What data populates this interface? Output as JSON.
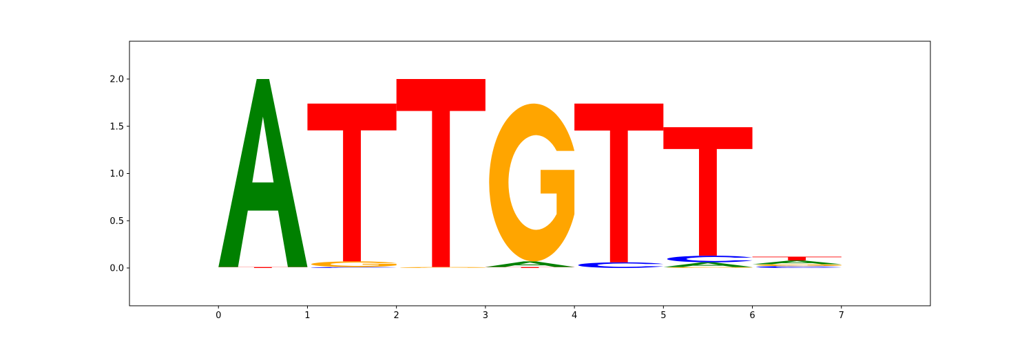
{
  "chart_data": {
    "type": "sequence_logo",
    "title": "",
    "xlabel": "",
    "ylabel": "",
    "xlim": [
      -1,
      8
    ],
    "ylim": [
      -0.4,
      2.4
    ],
    "x_ticks": [
      "0",
      "1",
      "2",
      "3",
      "4",
      "5",
      "6",
      "7"
    ],
    "y_ticks": [
      "0.0",
      "0.5",
      "1.0",
      "1.5",
      "2.0"
    ],
    "grid": false,
    "colors": {
      "A": "#008000",
      "C": "#0000ff",
      "G": "#ffa500",
      "T": "#ff0000"
    },
    "positions": [
      {
        "start": 0,
        "letters": [
          {
            "base": "T",
            "height": 0.01
          },
          {
            "base": "A",
            "height": 1.99
          }
        ]
      },
      {
        "start": 1,
        "letters": [
          {
            "base": "C",
            "height": 0.01
          },
          {
            "base": "G",
            "height": 0.06
          },
          {
            "base": "T",
            "height": 1.67
          }
        ]
      },
      {
        "start": 2,
        "letters": [
          {
            "base": "G",
            "height": 0.01
          },
          {
            "base": "T",
            "height": 1.99
          }
        ]
      },
      {
        "start": 3,
        "letters": [
          {
            "base": "T",
            "height": 0.01
          },
          {
            "base": "A",
            "height": 0.06
          },
          {
            "base": "G",
            "height": 1.67
          }
        ]
      },
      {
        "start": 4,
        "letters": [
          {
            "base": "C",
            "height": 0.06
          },
          {
            "base": "T",
            "height": 1.68
          }
        ]
      },
      {
        "start": 5,
        "letters": [
          {
            "base": "G",
            "height": 0.01
          },
          {
            "base": "A",
            "height": 0.05
          },
          {
            "base": "C",
            "height": 0.07
          },
          {
            "base": "T",
            "height": 1.36
          }
        ]
      },
      {
        "start": 6,
        "letters": [
          {
            "base": "C",
            "height": 0.02
          },
          {
            "base": "G",
            "height": 0.02
          },
          {
            "base": "A",
            "height": 0.04
          },
          {
            "base": "T",
            "height": 0.04
          }
        ]
      }
    ]
  }
}
